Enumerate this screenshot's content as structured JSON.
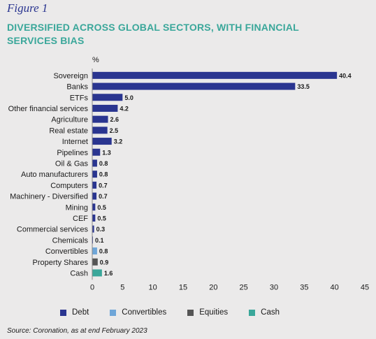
{
  "figure_label": "Figure 1",
  "title": "DIVERSIFIED ACROSS GLOBAL SECTORS, WITH FINANCIAL SERVICES BIAS",
  "source": "Source: Coronation, as at end February 2023",
  "colors": {
    "Debt": "#2a3590",
    "Convertibles": "#6fa6d8",
    "Equities": "#555555",
    "Cash": "#3aa79a"
  },
  "chart_data": {
    "type": "bar",
    "orientation": "horizontal",
    "unit_label": "%",
    "categories": [
      "Sovereign",
      "Banks",
      "ETFs",
      "Other financial services",
      "Agriculture",
      "Real estate",
      "Internet",
      "Pipelines",
      "Oil & Gas",
      "Auto manufacturers",
      "Computers",
      "Machinery - Diversified",
      "Mining",
      "CEF",
      "Commercial services",
      "Chemicals",
      "Convertibles",
      "Property Shares",
      "Cash"
    ],
    "values": [
      40.4,
      33.5,
      5.0,
      4.2,
      2.6,
      2.5,
      3.2,
      1.3,
      0.8,
      0.8,
      0.7,
      0.7,
      0.5,
      0.5,
      0.3,
      0.1,
      0.8,
      0.9,
      1.6
    ],
    "value_labels": [
      "40.4",
      "33.5",
      "5.0",
      "4.2",
      "2.6",
      "2.5",
      "3.2",
      "1.3",
      "0.8",
      "0.8",
      "0.7",
      "0.7",
      "0.5",
      "0.5",
      "0.3",
      "0.1",
      "0.8",
      "0.9",
      "1.6"
    ],
    "series_by_bar": [
      "Debt",
      "Debt",
      "Debt",
      "Debt",
      "Debt",
      "Debt",
      "Debt",
      "Debt",
      "Debt",
      "Debt",
      "Debt",
      "Debt",
      "Debt",
      "Debt",
      "Debt",
      "Debt",
      "Convertibles",
      "Equities",
      "Cash"
    ],
    "legend": [
      "Debt",
      "Convertibles",
      "Equities",
      "Cash"
    ],
    "legend_position": "bottom",
    "xlim": [
      0,
      45
    ],
    "xticks": [
      0,
      5,
      10,
      15,
      20,
      25,
      30,
      35,
      40,
      45
    ],
    "grid": false
  }
}
